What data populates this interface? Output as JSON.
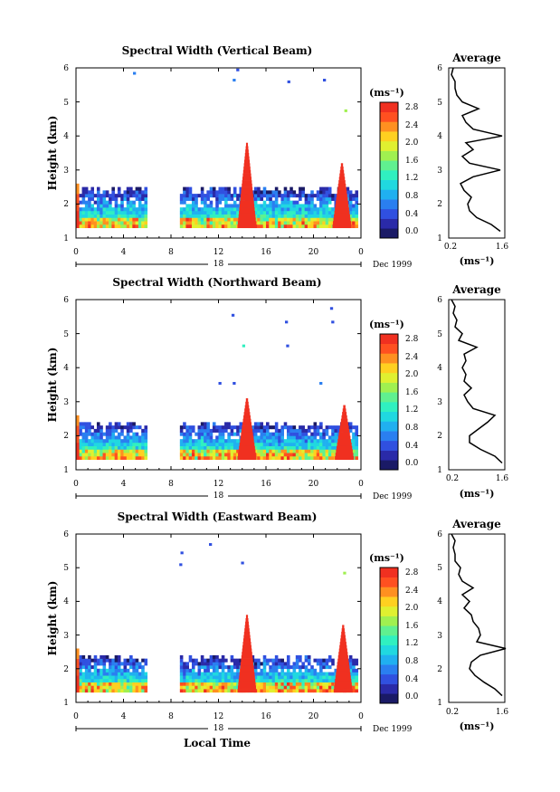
{
  "panels": [
    {
      "title": "Spectral Width (Vertical Beam)",
      "ylabel": "Height (km)",
      "y_ticks": [
        "1",
        "2",
        "3",
        "4",
        "5",
        "6"
      ],
      "x_ticks": [
        "0",
        "4",
        "8",
        "12",
        "16",
        "20",
        "0"
      ],
      "day_label": "18",
      "month_label": "Dec 1999",
      "colorbar_unit": "(ms⁻¹)",
      "colorbar_ticks": [
        "0.0",
        "0.4",
        "0.8",
        "1.2",
        "1.6",
        "2.0",
        "2.4",
        "2.8"
      ],
      "avg_title": "Average",
      "avg_x_ticks": [
        "0.2",
        "1.6"
      ],
      "avg_xlabel": "(ms⁻¹)",
      "avg_y_ticks": [
        "1",
        "2",
        "3",
        "4",
        "5",
        "6"
      ]
    },
    {
      "title": "Spectral Width (Northward Beam)",
      "ylabel": "Height (km)",
      "y_ticks": [
        "1",
        "2",
        "3",
        "4",
        "5",
        "6"
      ],
      "x_ticks": [
        "0",
        "4",
        "8",
        "12",
        "16",
        "20",
        "0"
      ],
      "day_label": "18",
      "month_label": "Dec 1999",
      "colorbar_unit": "(ms⁻¹)",
      "colorbar_ticks": [
        "0.0",
        "0.4",
        "0.8",
        "1.2",
        "1.6",
        "2.0",
        "2.4",
        "2.8"
      ],
      "avg_title": "Average",
      "avg_x_ticks": [
        "0.2",
        "1.6"
      ],
      "avg_xlabel": "(ms⁻¹)",
      "avg_y_ticks": [
        "1",
        "2",
        "3",
        "4",
        "5",
        "6"
      ]
    },
    {
      "title": "Spectral Width (Eastward Beam)",
      "ylabel": "Height (km)",
      "y_ticks": [
        "1",
        "2",
        "3",
        "4",
        "5",
        "6"
      ],
      "x_ticks": [
        "0",
        "4",
        "8",
        "12",
        "16",
        "20",
        "0"
      ],
      "day_label": "18",
      "month_label": "Dec 1999",
      "colorbar_unit": "(ms⁻¹)",
      "colorbar_ticks": [
        "0.0",
        "0.4",
        "0.8",
        "1.2",
        "1.6",
        "2.0",
        "2.4",
        "2.8"
      ],
      "avg_title": "Average",
      "avg_x_ticks": [
        "0.2",
        "1.6"
      ],
      "avg_xlabel": "(ms⁻¹)",
      "avg_y_ticks": [
        "1",
        "2",
        "3",
        "4",
        "5",
        "6"
      ]
    }
  ],
  "bottom_xlabel": "Local Time",
  "colormap": [
    "#1a1a66",
    "#2a2aa8",
    "#3050e0",
    "#2a7ff0",
    "#20b0f0",
    "#20d8e0",
    "#30f0c0",
    "#60f090",
    "#a0f050",
    "#e0f030",
    "#ffd020",
    "#ff9020",
    "#ff5020",
    "#f03020"
  ],
  "chart_data": [
    {
      "type": "heatmap",
      "title": "Spectral Width (Vertical Beam)",
      "xlabel": "Local Time",
      "ylabel": "Height (km)",
      "xlim": [
        0,
        24
      ],
      "ylim": [
        1,
        6
      ],
      "colorbar_range": [
        0.0,
        3.0
      ],
      "data_gaps_hours": [
        [
          6,
          8.7
        ]
      ],
      "echo_layer_top_km": 2.5,
      "peaks": [
        {
          "time_h": 14.4,
          "top_km": 3.8,
          "value": 3.0
        },
        {
          "time_h": 22.4,
          "top_km": 3.2,
          "value": 3.0
        }
      ],
      "profile": {
        "height_km": [
          1.2,
          1.4,
          1.6,
          1.8,
          2.0,
          2.2,
          2.4,
          2.6,
          2.8,
          3.0,
          3.2,
          3.4,
          3.6,
          3.8,
          4.0,
          4.2,
          4.4,
          4.6,
          4.8,
          5.0,
          5.2,
          5.4,
          5.6,
          5.8,
          6.0
        ],
        "width_ms": [
          1.55,
          1.3,
          0.9,
          0.7,
          0.65,
          0.75,
          0.55,
          0.45,
          0.8,
          1.55,
          0.7,
          0.5,
          0.8,
          0.6,
          1.6,
          0.8,
          0.6,
          0.5,
          0.95,
          0.5,
          0.35,
          0.3,
          0.3,
          0.2,
          0.25
        ]
      }
    },
    {
      "type": "heatmap",
      "title": "Spectral Width (Northward Beam)",
      "xlabel": "Local Time",
      "ylabel": "Height (km)",
      "xlim": [
        0,
        24
      ],
      "ylim": [
        1,
        6
      ],
      "colorbar_range": [
        0.0,
        3.0
      ],
      "data_gaps_hours": [
        [
          6,
          8.7
        ]
      ],
      "echo_layer_top_km": 2.4,
      "peaks": [
        {
          "time_h": 14.4,
          "top_km": 3.1,
          "value": 3.0
        },
        {
          "time_h": 22.6,
          "top_km": 2.9,
          "value": 3.0
        }
      ],
      "profile": {
        "height_km": [
          1.2,
          1.4,
          1.6,
          1.8,
          2.0,
          2.2,
          2.4,
          2.6,
          2.8,
          3.0,
          3.2,
          3.4,
          3.6,
          3.8,
          4.0,
          4.2,
          4.4,
          4.6,
          4.8,
          5.0,
          5.2,
          5.4,
          5.6,
          5.8,
          6.0
        ],
        "width_ms": [
          1.6,
          1.4,
          1.0,
          0.7,
          0.7,
          0.95,
          1.2,
          1.4,
          0.8,
          0.65,
          0.55,
          0.75,
          0.55,
          0.6,
          0.5,
          0.6,
          0.55,
          0.9,
          0.4,
          0.5,
          0.3,
          0.35,
          0.25,
          0.3,
          0.2
        ]
      }
    },
    {
      "type": "heatmap",
      "title": "Spectral Width (Eastward Beam)",
      "xlabel": "Local Time",
      "ylabel": "Height (km)",
      "xlim": [
        0,
        24
      ],
      "ylim": [
        1,
        6
      ],
      "colorbar_range": [
        0.0,
        3.0
      ],
      "data_gaps_hours": [
        [
          6,
          8.7
        ]
      ],
      "echo_layer_top_km": 2.4,
      "peaks": [
        {
          "time_h": 14.4,
          "top_km": 3.6,
          "value": 3.0
        },
        {
          "time_h": 22.5,
          "top_km": 3.3,
          "value": 3.0
        }
      ],
      "profile": {
        "height_km": [
          1.2,
          1.4,
          1.6,
          1.8,
          2.0,
          2.2,
          2.4,
          2.6,
          2.8,
          3.0,
          3.2,
          3.4,
          3.6,
          3.8,
          4.0,
          4.2,
          4.4,
          4.6,
          4.8,
          5.0,
          5.2,
          5.4,
          5.6,
          5.8,
          6.0
        ],
        "width_ms": [
          1.6,
          1.4,
          1.1,
          0.85,
          0.7,
          0.75,
          1.0,
          1.7,
          0.9,
          1.0,
          0.95,
          0.8,
          0.75,
          0.55,
          0.7,
          0.5,
          0.8,
          0.5,
          0.4,
          0.45,
          0.3,
          0.3,
          0.25,
          0.3,
          0.2
        ]
      }
    }
  ]
}
